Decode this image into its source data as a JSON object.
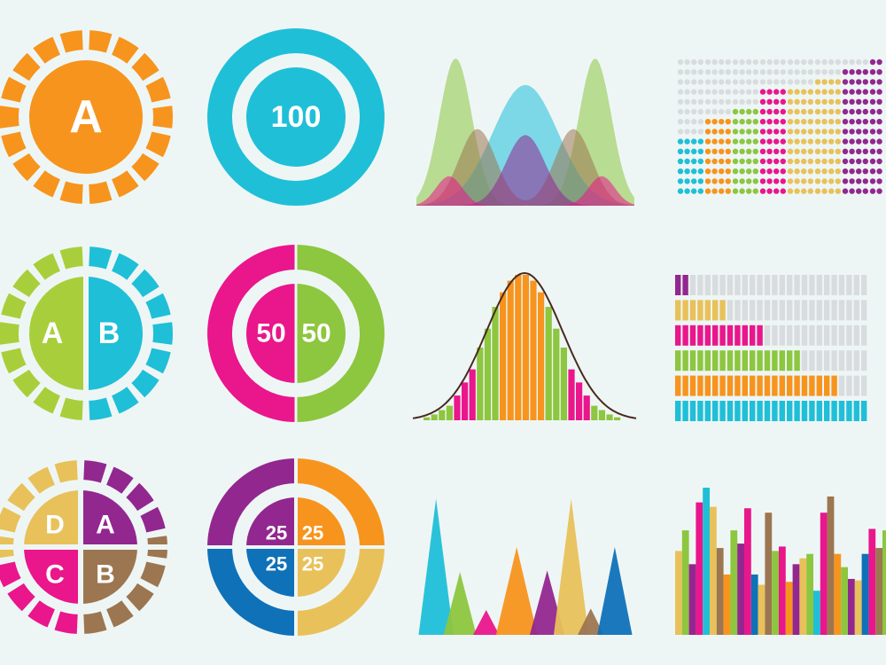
{
  "colors": {
    "background": "#eef6f5",
    "orange": "#f7941d",
    "cyan": "#1fbfd8",
    "lime": "#a8cf3b",
    "magenta": "#e9168c",
    "green": "#8dc63f",
    "purple": "#92278f",
    "blue": "#0f71b8",
    "gold": "#e8c15a",
    "brown": "#9c7651",
    "grey": "#d9dcde"
  },
  "badges": {
    "single": {
      "label": "A",
      "color": "orange"
    },
    "split": {
      "labels": [
        "A",
        "B"
      ],
      "colors": [
        "lime",
        "cyan"
      ]
    },
    "quad": {
      "labels": [
        "D",
        "A",
        "C",
        "B"
      ],
      "colors": [
        "gold",
        "purple",
        "magenta",
        "brown"
      ]
    }
  },
  "donuts": {
    "single": {
      "label": "100",
      "color": "cyan"
    },
    "half": {
      "labels": [
        "50",
        "50"
      ],
      "colors": [
        "magenta",
        "green"
      ]
    },
    "quarter": {
      "labels": [
        "25",
        "25",
        "25",
        "25"
      ],
      "colors": [
        "purple",
        "orange",
        "blue",
        "gold"
      ]
    }
  },
  "chart_data": [
    {
      "type": "area",
      "name": "overlapping-bell-curves",
      "series": [
        {
          "color": "green",
          "peaks": [
            {
              "mu": 0.18,
              "sigma": 0.075,
              "amp": 1.0
            },
            {
              "mu": 0.82,
              "sigma": 0.075,
              "amp": 1.0
            }
          ]
        },
        {
          "color": "cyan",
          "peaks": [
            {
              "mu": 0.5,
              "sigma": 0.15,
              "amp": 0.82
            }
          ]
        },
        {
          "color": "brown",
          "peaks": [
            {
              "mu": 0.28,
              "sigma": 0.085,
              "amp": 0.52
            },
            {
              "mu": 0.72,
              "sigma": 0.085,
              "amp": 0.52
            }
          ]
        },
        {
          "color": "purple",
          "peaks": [
            {
              "mu": 0.5,
              "sigma": 0.09,
              "amp": 0.48
            }
          ]
        },
        {
          "color": "magenta",
          "peaks": [
            {
              "mu": 0.15,
              "sigma": 0.06,
              "amp": 0.2
            },
            {
              "mu": 0.85,
              "sigma": 0.06,
              "amp": 0.2
            }
          ]
        }
      ]
    },
    {
      "type": "bar",
      "name": "dot-matrix-columns",
      "rows": 14,
      "values": [
        6,
        8,
        9,
        11,
        11,
        12,
        13,
        14,
        12,
        13
      ],
      "column_colors": [
        "cyan",
        "orange",
        "green",
        "magenta",
        "gold",
        "gold",
        "purple",
        "purple",
        "brown",
        "blue"
      ]
    },
    {
      "type": "bar",
      "name": "normal-distribution-histogram",
      "values": [
        0.02,
        0.04,
        0.07,
        0.1,
        0.17,
        0.26,
        0.35,
        0.5,
        0.63,
        0.78,
        0.88,
        0.96,
        1.0,
        1.0,
        0.96,
        0.88,
        0.78,
        0.63,
        0.5,
        0.35,
        0.26,
        0.17,
        0.1,
        0.07,
        0.04,
        0.02
      ],
      "bar_colors": [
        "green",
        "green",
        "green",
        "green",
        "magenta",
        "magenta",
        "magenta",
        "green",
        "green",
        "green",
        "orange",
        "orange",
        "orange",
        "orange",
        "orange",
        "orange",
        "green",
        "green",
        "green",
        "magenta",
        "magenta",
        "magenta",
        "green",
        "green",
        "green",
        "green"
      ]
    },
    {
      "type": "bar",
      "name": "segmented-horizontal-bars",
      "segments": 26,
      "values": [
        2,
        7,
        12,
        17,
        22,
        27
      ],
      "bar_colors": [
        "purple",
        "gold",
        "magenta",
        "green",
        "orange",
        "cyan"
      ]
    },
    {
      "type": "area",
      "name": "spike-triangles",
      "spikes": [
        {
          "x": 0.09,
          "w": 0.16,
          "h": 0.93,
          "color": "cyan"
        },
        {
          "x": 0.2,
          "w": 0.15,
          "h": 0.43,
          "color": "green"
        },
        {
          "x": 0.32,
          "w": 0.12,
          "h": 0.17,
          "color": "magenta"
        },
        {
          "x": 0.46,
          "w": 0.19,
          "h": 0.6,
          "color": "orange"
        },
        {
          "x": 0.6,
          "w": 0.16,
          "h": 0.44,
          "color": "purple"
        },
        {
          "x": 0.71,
          "w": 0.16,
          "h": 0.93,
          "color": "gold"
        },
        {
          "x": 0.8,
          "w": 0.12,
          "h": 0.18,
          "color": "brown"
        },
        {
          "x": 0.91,
          "w": 0.16,
          "h": 0.6,
          "color": "blue"
        }
      ]
    },
    {
      "type": "bar",
      "name": "random-vertical-bars",
      "values": [
        0.57,
        0.71,
        0.48,
        0.9,
        1.0,
        0.87,
        0.59,
        0.41,
        0.71,
        0.62,
        0.86,
        0.41,
        0.34,
        0.83,
        0.57,
        0.6,
        0.36,
        0.48,
        0.52,
        0.55,
        0.3,
        0.83,
        0.94,
        0.55,
        0.46,
        0.38,
        0.37,
        0.55,
        0.72,
        0.59,
        0.71
      ],
      "bar_colors": [
        "gold",
        "green",
        "purple",
        "magenta",
        "cyan",
        "gold",
        "brown",
        "orange",
        "green",
        "purple",
        "magenta",
        "blue",
        "gold",
        "brown",
        "green",
        "magenta",
        "orange",
        "purple",
        "gold",
        "green",
        "cyan",
        "magenta",
        "brown",
        "orange",
        "green",
        "purple",
        "gold",
        "blue",
        "magenta",
        "brown",
        "green"
      ]
    }
  ]
}
